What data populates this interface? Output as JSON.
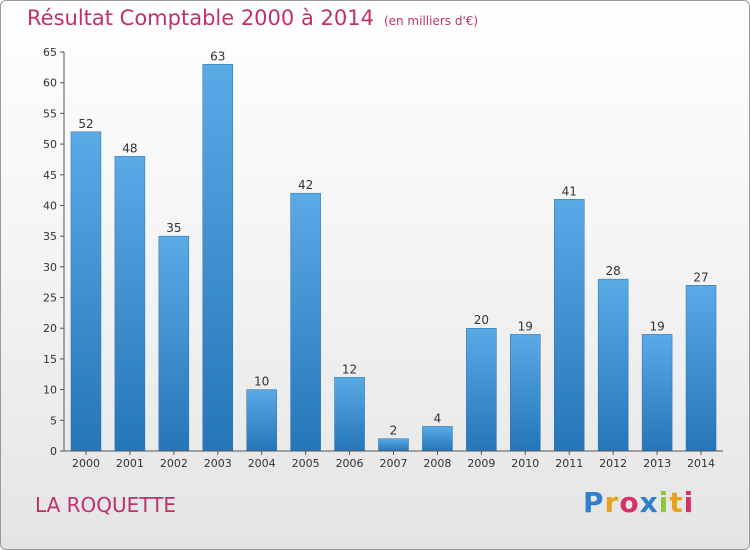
{
  "chart_data": {
    "type": "bar",
    "title": "Résultat Comptable 2000 à 2014",
    "subtitle": "(en milliers d'€)",
    "categories": [
      "2000",
      "2001",
      "2002",
      "2003",
      "2004",
      "2005",
      "2006",
      "2007",
      "2008",
      "2009",
      "2010",
      "2011",
      "2012",
      "2013",
      "2014"
    ],
    "values": [
      52,
      48,
      35,
      63,
      10,
      42,
      12,
      2,
      4,
      20,
      19,
      41,
      28,
      19,
      27
    ],
    "ylim": [
      0,
      65
    ],
    "yticks": [
      0,
      5,
      10,
      15,
      20,
      25,
      30,
      35,
      40,
      45,
      50,
      55,
      60,
      65
    ],
    "xlabel": "",
    "ylabel": "",
    "grid": false,
    "bar_color_top": "#5aaae6",
    "bar_color_bottom": "#2576b8"
  },
  "footer": {
    "commune": "LA ROQUETTE",
    "logo_letters": [
      "P",
      "r",
      "o",
      "x",
      "i",
      "t",
      "i"
    ],
    "logo_colors": [
      "#2f7fd0",
      "#e8a020",
      "#d6306a",
      "#2f7fd0",
      "#8cc63f",
      "#e8a020",
      "#d6306a"
    ]
  }
}
